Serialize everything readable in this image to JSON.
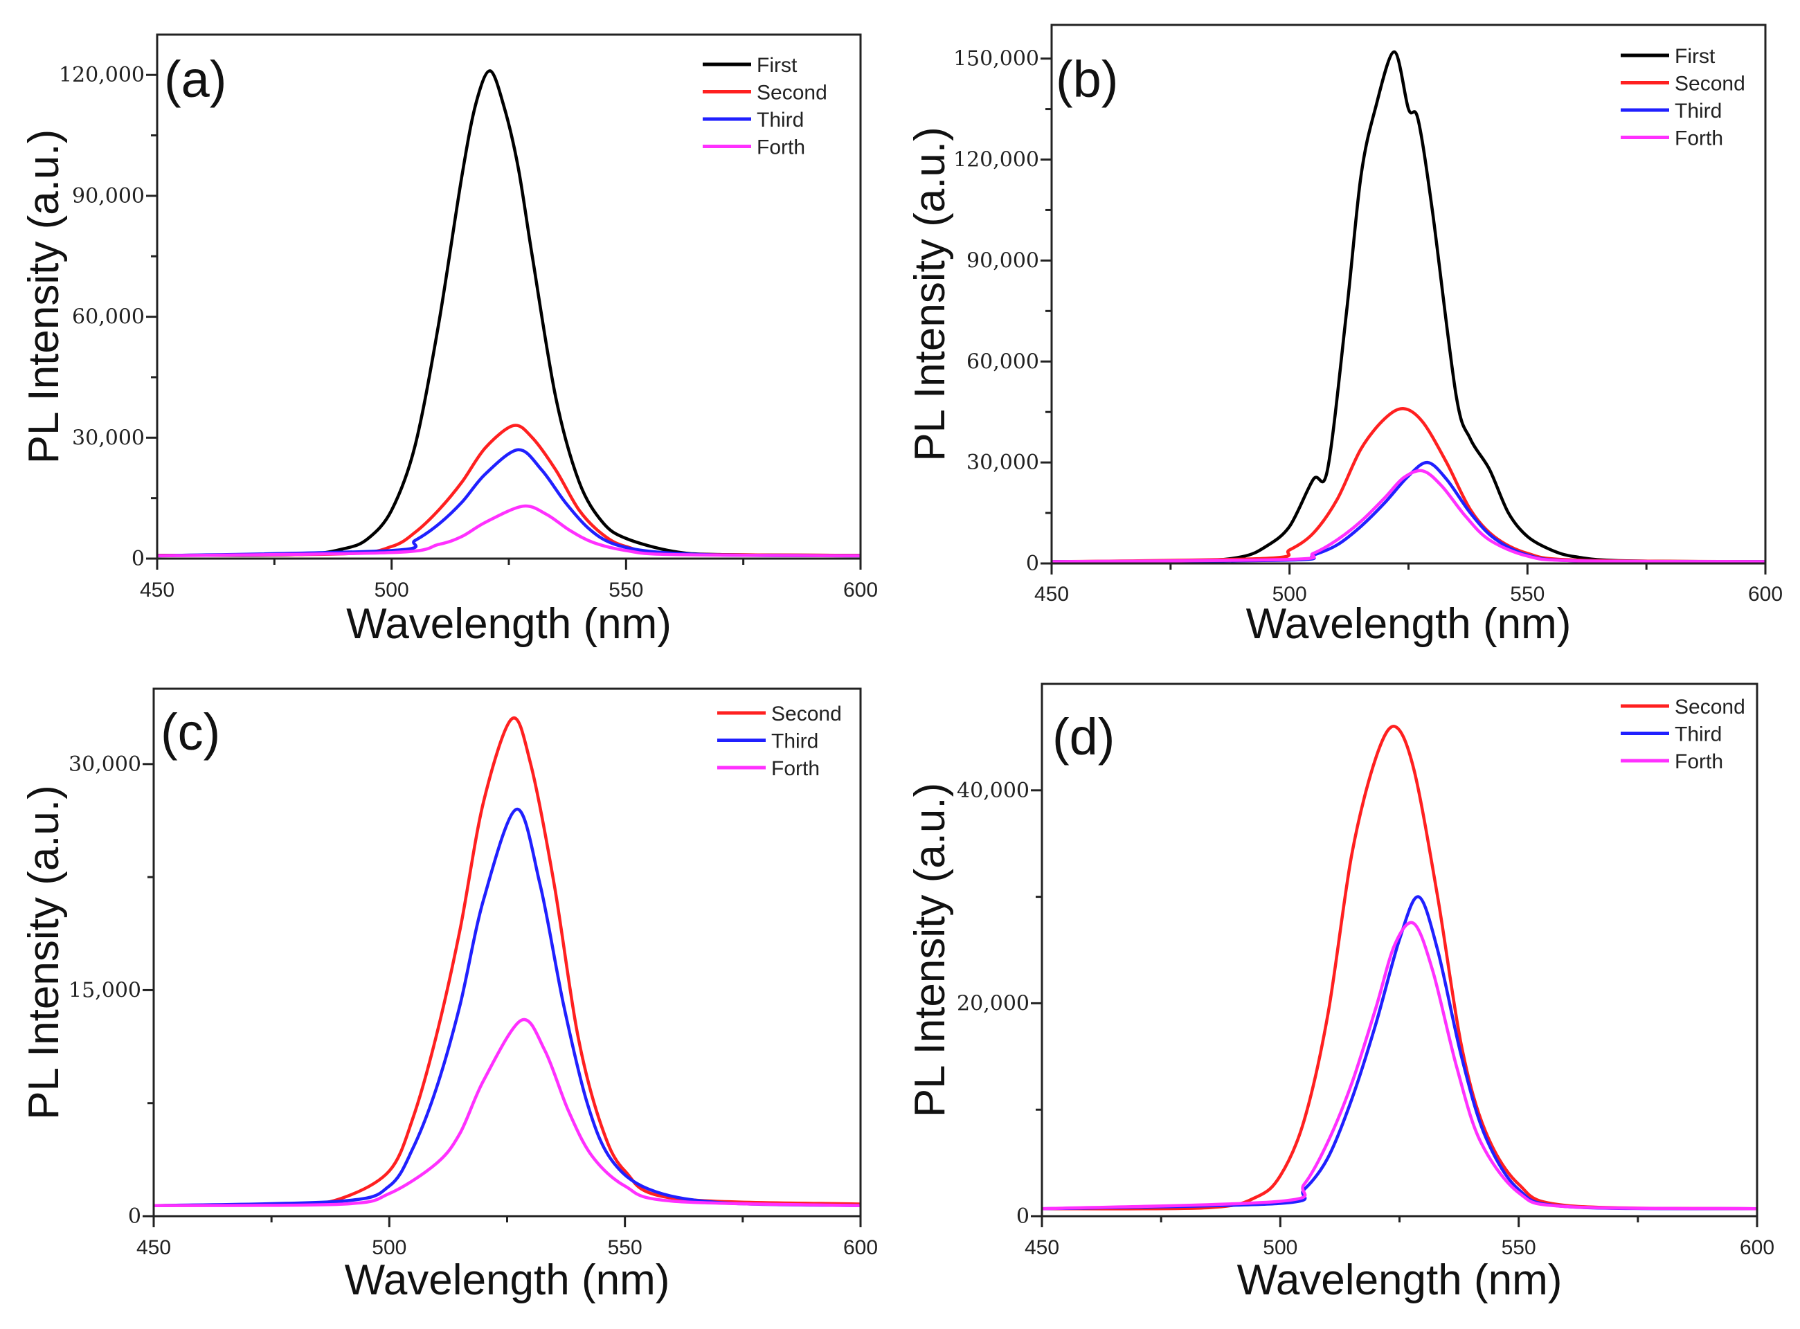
{
  "chart_data": [
    {
      "type": "line",
      "panel": "(a)",
      "xlabel": "Wavelength (nm)",
      "ylabel": "PL Intensity (a.u.)",
      "xlim": [
        450,
        600
      ],
      "ylim": [
        0,
        130000
      ],
      "xticks": [
        450,
        500,
        550,
        600
      ],
      "xtick_labels": [
        "450",
        "500",
        "550",
        "600"
      ],
      "yticks": [
        0,
        30000,
        60000,
        90000,
        120000
      ],
      "ytick_labels": [
        "0",
        "30,000",
        "60,000",
        "90,000",
        "120,000"
      ],
      "legend": "top-right",
      "series": [
        {
          "name": "First",
          "color": "#000000",
          "points": [
            [
              450,
              800
            ],
            [
              480,
              1000
            ],
            [
              490,
              2500
            ],
            [
              495,
              5000
            ],
            [
              500,
              12000
            ],
            [
              505,
              28000
            ],
            [
              510,
              58000
            ],
            [
              515,
              95000
            ],
            [
              518,
              113000
            ],
            [
              521,
              121000
            ],
            [
              524,
              112000
            ],
            [
              527,
              97000
            ],
            [
              530,
              75000
            ],
            [
              535,
              40000
            ],
            [
              540,
              19000
            ],
            [
              545,
              9000
            ],
            [
              550,
              5000
            ],
            [
              560,
              1800
            ],
            [
              570,
              1000
            ],
            [
              600,
              800
            ]
          ]
        },
        {
          "name": "Second",
          "color": "#ff2020",
          "points": [
            [
              450,
              800
            ],
            [
              490,
              1200
            ],
            [
              500,
              3000
            ],
            [
              505,
              6500
            ],
            [
              510,
              12000
            ],
            [
              515,
              19000
            ],
            [
              520,
              27500
            ],
            [
              526,
              33000
            ],
            [
              530,
              30000
            ],
            [
              535,
              22000
            ],
            [
              540,
              12000
            ],
            [
              545,
              6000
            ],
            [
              550,
              3000
            ],
            [
              560,
              1200
            ],
            [
              600,
              800
            ]
          ]
        },
        {
          "name": "Third",
          "color": "#2020ff",
          "points": [
            [
              450,
              700
            ],
            [
              500,
              2000
            ],
            [
              505,
              4500
            ],
            [
              510,
              8500
            ],
            [
              515,
              14000
            ],
            [
              520,
              21000
            ],
            [
              527,
              27000
            ],
            [
              532,
              22000
            ],
            [
              537,
              14000
            ],
            [
              542,
              7500
            ],
            [
              547,
              3800
            ],
            [
              555,
              1800
            ],
            [
              570,
              900
            ],
            [
              600,
              700
            ]
          ]
        },
        {
          "name": "Forth",
          "color": "#ff30ff",
          "points": [
            [
              450,
              700
            ],
            [
              500,
              1500
            ],
            [
              510,
              3500
            ],
            [
              515,
              5500
            ],
            [
              520,
              9000
            ],
            [
              528,
              13000
            ],
            [
              533,
              11000
            ],
            [
              538,
              7000
            ],
            [
              543,
              4000
            ],
            [
              550,
              2000
            ],
            [
              560,
              1000
            ],
            [
              600,
              700
            ]
          ]
        }
      ]
    },
    {
      "type": "line",
      "panel": "(b)",
      "xlabel": "Wavelength (nm)",
      "ylabel": "PL Intensity (a.u.)",
      "xlim": [
        450,
        600
      ],
      "ylim": [
        0,
        160000
      ],
      "xticks": [
        450,
        500,
        550,
        600
      ],
      "xtick_labels": [
        "450",
        "500",
        "550",
        "600"
      ],
      "yticks": [
        0,
        30000,
        60000,
        90000,
        120000,
        150000
      ],
      "ytick_labels": [
        "0",
        "30,000",
        "60,000",
        "90,000",
        "120,000",
        "150,000"
      ],
      "legend": "top-right",
      "series": [
        {
          "name": "First",
          "color": "#000000",
          "points": [
            [
              450,
              500
            ],
            [
              480,
              800
            ],
            [
              490,
              2000
            ],
            [
              495,
              5000
            ],
            [
              500,
              11000
            ],
            [
              505,
              25000
            ],
            [
              508,
              28000
            ],
            [
              512,
              75000
            ],
            [
              515,
              115000
            ],
            [
              518,
              135000
            ],
            [
              522,
              152000
            ],
            [
              525,
              135000
            ],
            [
              527,
              132000
            ],
            [
              530,
              105000
            ],
            [
              535,
              50000
            ],
            [
              538,
              37000
            ],
            [
              542,
              28000
            ],
            [
              546,
              15000
            ],
            [
              550,
              8000
            ],
            [
              555,
              4000
            ],
            [
              560,
              2000
            ],
            [
              570,
              800
            ],
            [
              600,
              500
            ]
          ]
        },
        {
          "name": "Second",
          "color": "#ff2020",
          "points": [
            [
              450,
              500
            ],
            [
              495,
              1500
            ],
            [
              500,
              4000
            ],
            [
              505,
              9000
            ],
            [
              510,
              19000
            ],
            [
              515,
              34000
            ],
            [
              520,
              43000
            ],
            [
              524,
              46000
            ],
            [
              528,
              42000
            ],
            [
              533,
              30000
            ],
            [
              538,
              16000
            ],
            [
              543,
              8000
            ],
            [
              550,
              3000
            ],
            [
              560,
              1000
            ],
            [
              600,
              500
            ]
          ]
        },
        {
          "name": "Third",
          "color": "#2020ff",
          "points": [
            [
              450,
              500
            ],
            [
              500,
              1000
            ],
            [
              505,
              2500
            ],
            [
              510,
              5500
            ],
            [
              515,
              11000
            ],
            [
              520,
              18000
            ],
            [
              525,
              26000
            ],
            [
              529,
              30000
            ],
            [
              533,
              25000
            ],
            [
              538,
              15000
            ],
            [
              543,
              7500
            ],
            [
              550,
              2500
            ],
            [
              560,
              800
            ],
            [
              600,
              500
            ]
          ]
        },
        {
          "name": "Forth",
          "color": "#ff30ff",
          "points": [
            [
              450,
              500
            ],
            [
              500,
              1200
            ],
            [
              505,
              3000
            ],
            [
              510,
              7000
            ],
            [
              515,
              12500
            ],
            [
              520,
              19500
            ],
            [
              524,
              25500
            ],
            [
              528,
              27500
            ],
            [
              532,
              23000
            ],
            [
              537,
              14000
            ],
            [
              542,
              7000
            ],
            [
              550,
              2200
            ],
            [
              560,
              800
            ],
            [
              600,
              500
            ]
          ]
        }
      ]
    },
    {
      "type": "line",
      "panel": "(c)",
      "xlabel": "Wavelength (nm)",
      "ylabel": "PL Intensity (a.u.)",
      "xlim": [
        450,
        600
      ],
      "ylim": [
        0,
        35000
      ],
      "xticks": [
        450,
        500,
        550,
        600
      ],
      "xtick_labels": [
        "450",
        "500",
        "550",
        "600"
      ],
      "yticks": [
        0,
        15000,
        30000
      ],
      "ytick_labels": [
        "0",
        "15,000",
        "30,000"
      ],
      "legend": "top-right",
      "series": [
        {
          "name": "Second",
          "color": "#ff2020",
          "points": [
            [
              450,
              700
            ],
            [
              480,
              800
            ],
            [
              490,
              1200
            ],
            [
              500,
              3000
            ],
            [
              505,
              6500
            ],
            [
              510,
              12000
            ],
            [
              515,
              19000
            ],
            [
              520,
              27500
            ],
            [
              526,
              33000
            ],
            [
              530,
              30000
            ],
            [
              535,
              22000
            ],
            [
              540,
              12000
            ],
            [
              545,
              6000
            ],
            [
              550,
              3000
            ],
            [
              560,
              1200
            ],
            [
              600,
              800
            ]
          ]
        },
        {
          "name": "Third",
          "color": "#2020ff",
          "points": [
            [
              450,
              700
            ],
            [
              490,
              1000
            ],
            [
              500,
              2000
            ],
            [
              505,
              4500
            ],
            [
              510,
              8500
            ],
            [
              515,
              14000
            ],
            [
              520,
              21000
            ],
            [
              527,
              27000
            ],
            [
              532,
              22000
            ],
            [
              537,
              14000
            ],
            [
              542,
              7500
            ],
            [
              547,
              3800
            ],
            [
              555,
              1800
            ],
            [
              570,
              900
            ],
            [
              600,
              700
            ]
          ]
        },
        {
          "name": "Forth",
          "color": "#ff30ff",
          "points": [
            [
              450,
              700
            ],
            [
              490,
              800
            ],
            [
              500,
              1500
            ],
            [
              510,
              3500
            ],
            [
              515,
              5500
            ],
            [
              520,
              9000
            ],
            [
              528,
              13000
            ],
            [
              533,
              11000
            ],
            [
              538,
              7000
            ],
            [
              543,
              4000
            ],
            [
              550,
              2000
            ],
            [
              560,
              1000
            ],
            [
              600,
              700
            ]
          ]
        }
      ]
    },
    {
      "type": "line",
      "panel": "(d)",
      "xlabel": "Wavelength (nm)",
      "ylabel": "PL Intensity (a.u.)",
      "xlim": [
        450,
        600
      ],
      "ylim": [
        0,
        50000
      ],
      "xticks": [
        450,
        500,
        550,
        600
      ],
      "xtick_labels": [
        "450",
        "500",
        "550",
        "600"
      ],
      "yticks": [
        0,
        20000,
        40000
      ],
      "ytick_labels": [
        "0",
        "20,000",
        "40,000"
      ],
      "legend": "top-right",
      "series": [
        {
          "name": "Second",
          "color": "#ff2020",
          "points": [
            [
              450,
              700
            ],
            [
              485,
              800
            ],
            [
              495,
              1800
            ],
            [
              500,
              3800
            ],
            [
              505,
              9000
            ],
            [
              510,
              19000
            ],
            [
              515,
              34000
            ],
            [
              520,
              43000
            ],
            [
              524,
              46000
            ],
            [
              528,
              42000
            ],
            [
              533,
              30000
            ],
            [
              538,
              16000
            ],
            [
              543,
              8000
            ],
            [
              550,
              3000
            ],
            [
              560,
              1000
            ],
            [
              600,
              700
            ]
          ]
        },
        {
          "name": "Third",
          "color": "#2020ff",
          "points": [
            [
              450,
              700
            ],
            [
              500,
              1200
            ],
            [
              505,
              2500
            ],
            [
              510,
              5500
            ],
            [
              515,
              11000
            ],
            [
              520,
              18000
            ],
            [
              525,
              26000
            ],
            [
              529,
              30000
            ],
            [
              533,
              25000
            ],
            [
              538,
              15000
            ],
            [
              543,
              7500
            ],
            [
              550,
              2500
            ],
            [
              560,
              900
            ],
            [
              600,
              700
            ]
          ]
        },
        {
          "name": "Forth",
          "color": "#ff30ff",
          "points": [
            [
              450,
              700
            ],
            [
              500,
              1400
            ],
            [
              505,
              3000
            ],
            [
              510,
              7000
            ],
            [
              515,
              12500
            ],
            [
              520,
              19500
            ],
            [
              524,
              25500
            ],
            [
              528,
              27500
            ],
            [
              532,
              23000
            ],
            [
              537,
              14000
            ],
            [
              542,
              7000
            ],
            [
              550,
              2200
            ],
            [
              560,
              900
            ],
            [
              600,
              700
            ]
          ]
        }
      ]
    }
  ]
}
